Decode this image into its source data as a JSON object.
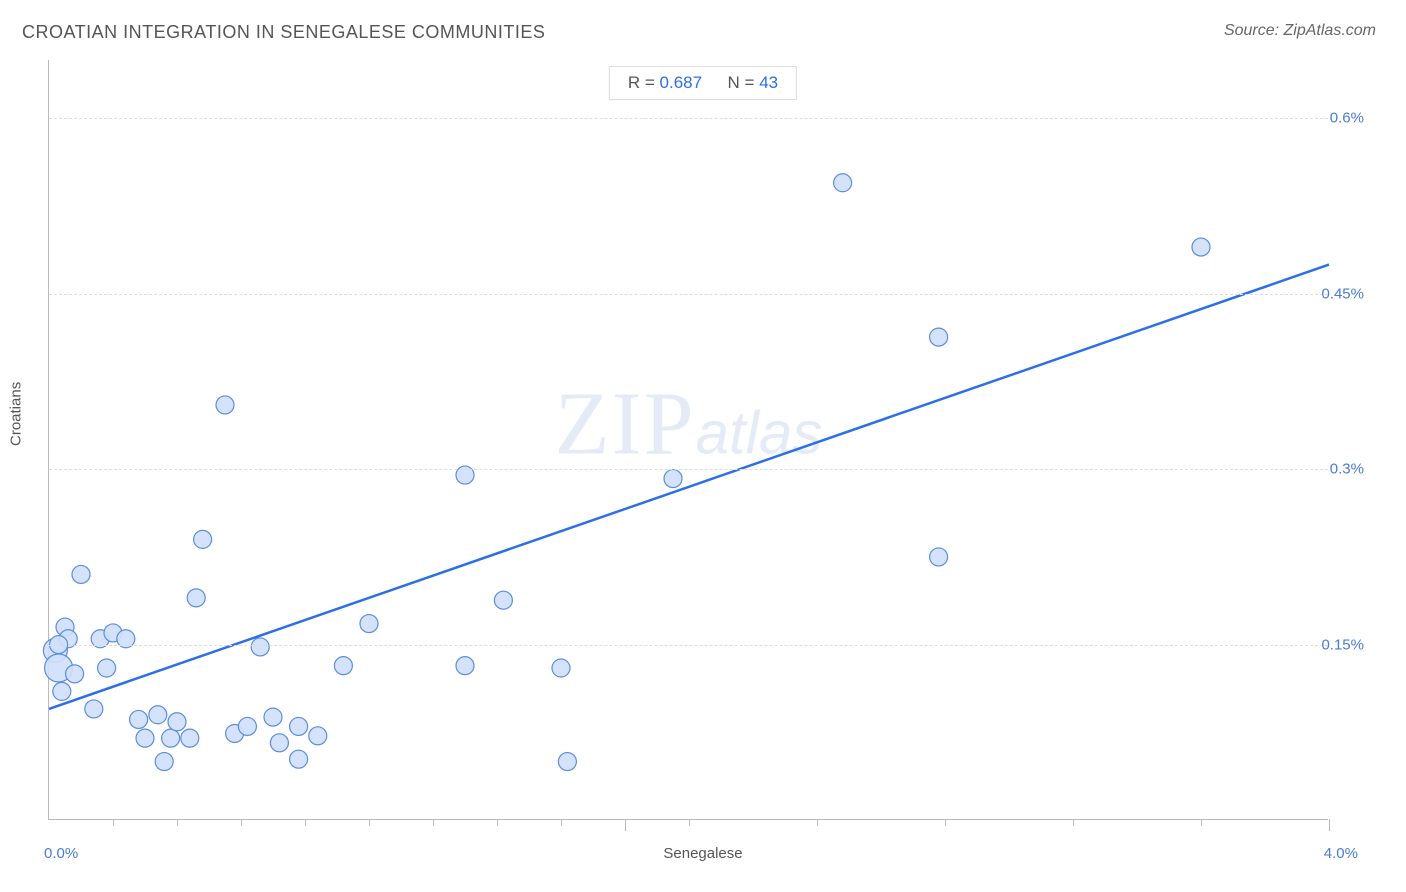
{
  "title": "CROATIAN INTEGRATION IN SENEGALESE COMMUNITIES",
  "source": "Source: ZipAtlas.com",
  "watermark_zip": "ZIP",
  "watermark_atlas": "atlas",
  "chart": {
    "type": "scatter",
    "xlabel": "Senegalese",
    "ylabel": "Croatians",
    "xlim": [
      0.0,
      4.0
    ],
    "ylim": [
      0.0,
      0.65
    ],
    "x_origin_label": "0.0%",
    "x_max_label": "4.0%",
    "y_ticks": [
      {
        "value": 0.15,
        "label": "0.15%"
      },
      {
        "value": 0.3,
        "label": "0.3%"
      },
      {
        "value": 0.45,
        "label": "0.45%"
      },
      {
        "value": 0.6,
        "label": "0.6%"
      }
    ],
    "x_minor_ticks": [
      0.2,
      0.4,
      0.6,
      0.8,
      1.0,
      1.2,
      1.4,
      1.6,
      2.0,
      2.4,
      2.8,
      3.2,
      3.6
    ],
    "x_major_ticks": [
      1.8,
      4.0
    ],
    "background_color": "#ffffff",
    "grid_color": "#e0e0e0",
    "axis_color": "#bbbbbb",
    "marker": {
      "fill": "#cfe0fb",
      "stroke": "#5a8de0",
      "stroke_width": 1.2,
      "radius": 9,
      "opacity": 0.9
    },
    "trend_line": {
      "color": "#2d6fe8",
      "width": 2.5,
      "x1": 0.0,
      "y1": 0.095,
      "x2": 4.0,
      "y2": 0.475
    },
    "stats": {
      "r_label": "R =",
      "r_value": "0.687",
      "n_label": "N =",
      "n_value": "43"
    },
    "label_fontsize": 15,
    "tick_label_color": "#4a7bd8",
    "points": [
      {
        "x": 0.02,
        "y": 0.145,
        "r": 12
      },
      {
        "x": 0.03,
        "y": 0.13,
        "r": 14
      },
      {
        "x": 0.05,
        "y": 0.165
      },
      {
        "x": 0.08,
        "y": 0.125
      },
      {
        "x": 0.06,
        "y": 0.155
      },
      {
        "x": 0.03,
        "y": 0.15
      },
      {
        "x": 0.1,
        "y": 0.21
      },
      {
        "x": 0.14,
        "y": 0.095
      },
      {
        "x": 0.16,
        "y": 0.155
      },
      {
        "x": 0.18,
        "y": 0.13
      },
      {
        "x": 0.2,
        "y": 0.16
      },
      {
        "x": 0.24,
        "y": 0.155
      },
      {
        "x": 0.28,
        "y": 0.086
      },
      {
        "x": 0.3,
        "y": 0.07
      },
      {
        "x": 0.34,
        "y": 0.09
      },
      {
        "x": 0.38,
        "y": 0.07
      },
      {
        "x": 0.4,
        "y": 0.084
      },
      {
        "x": 0.36,
        "y": 0.05
      },
      {
        "x": 0.44,
        "y": 0.07
      },
      {
        "x": 0.46,
        "y": 0.19
      },
      {
        "x": 0.48,
        "y": 0.24
      },
      {
        "x": 0.55,
        "y": 0.355
      },
      {
        "x": 0.58,
        "y": 0.074
      },
      {
        "x": 0.62,
        "y": 0.08
      },
      {
        "x": 0.66,
        "y": 0.148
      },
      {
        "x": 0.7,
        "y": 0.088
      },
      {
        "x": 0.72,
        "y": 0.066
      },
      {
        "x": 0.78,
        "y": 0.052
      },
      {
        "x": 0.78,
        "y": 0.08
      },
      {
        "x": 0.84,
        "y": 0.072
      },
      {
        "x": 0.92,
        "y": 0.132
      },
      {
        "x": 1.0,
        "y": 0.168
      },
      {
        "x": 1.3,
        "y": 0.132
      },
      {
        "x": 1.3,
        "y": 0.295
      },
      {
        "x": 1.42,
        "y": 0.188
      },
      {
        "x": 1.6,
        "y": 0.13
      },
      {
        "x": 1.62,
        "y": 0.05
      },
      {
        "x": 1.95,
        "y": 0.292
      },
      {
        "x": 2.48,
        "y": 0.545
      },
      {
        "x": 2.78,
        "y": 0.413
      },
      {
        "x": 2.78,
        "y": 0.225
      },
      {
        "x": 3.6,
        "y": 0.49
      },
      {
        "x": 0.04,
        "y": 0.11
      }
    ]
  }
}
